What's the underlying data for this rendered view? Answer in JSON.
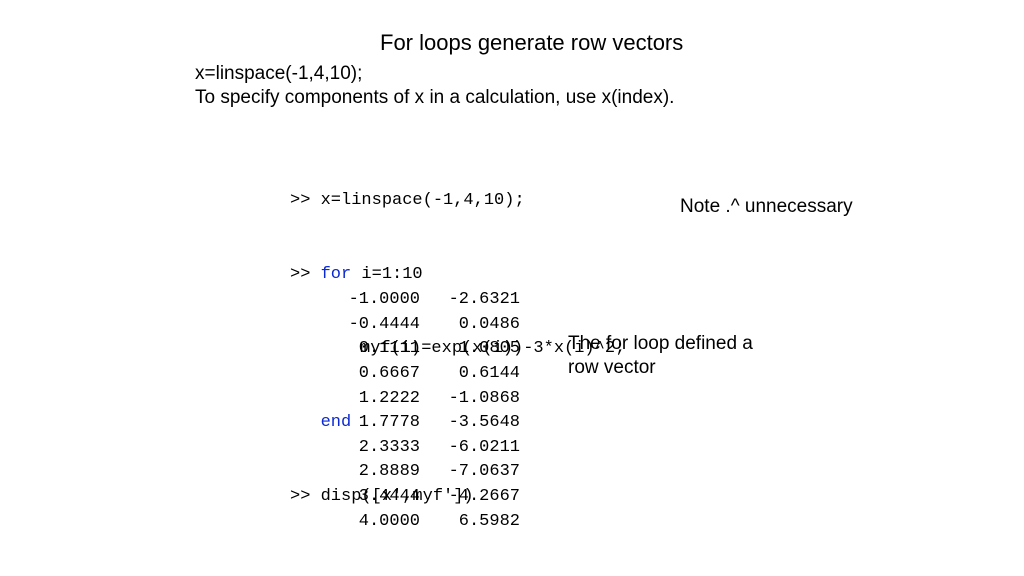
{
  "title": "For loops generate row vectors",
  "intro_line1": "x=linspace(-1,4,10);",
  "intro_line2": "To specify components of x in a calculation, use x(index).",
  "code": {
    "l1_prompt": ">> ",
    "l1": "x=linspace(-1,4,10);",
    "l2_prompt": ">> ",
    "l2_kw": "for",
    "l2_rest": " i=1:10",
    "l3": "myf(i)=exp(x(i))-3*x(i)^2;",
    "l4_kw": "end",
    "l5_prompt": ">> ",
    "l5": "disp([x',myf'])"
  },
  "table": {
    "rows": [
      [
        "-1.0000",
        "-2.6321"
      ],
      [
        "-0.4444",
        "0.0486"
      ],
      [
        "0.1111",
        "1.0805"
      ],
      [
        "0.6667",
        "0.6144"
      ],
      [
        "1.2222",
        "-1.0868"
      ],
      [
        "1.7778",
        "-3.5648"
      ],
      [
        "2.3333",
        "-6.0211"
      ],
      [
        "2.8889",
        "-7.0637"
      ],
      [
        "3.4444",
        "-4.2667"
      ],
      [
        "4.0000",
        "6.5982"
      ]
    ]
  },
  "note1": "Note .^ unnecessary",
  "note2": "The for loop defined a row vector",
  "style": {
    "bg": "#ffffff",
    "text_color": "#000000",
    "keyword_color": "#0a28d6",
    "title_fontsize": 22,
    "body_fontsize": 19,
    "code_fontsize": 17,
    "code_font": "Courier New"
  }
}
